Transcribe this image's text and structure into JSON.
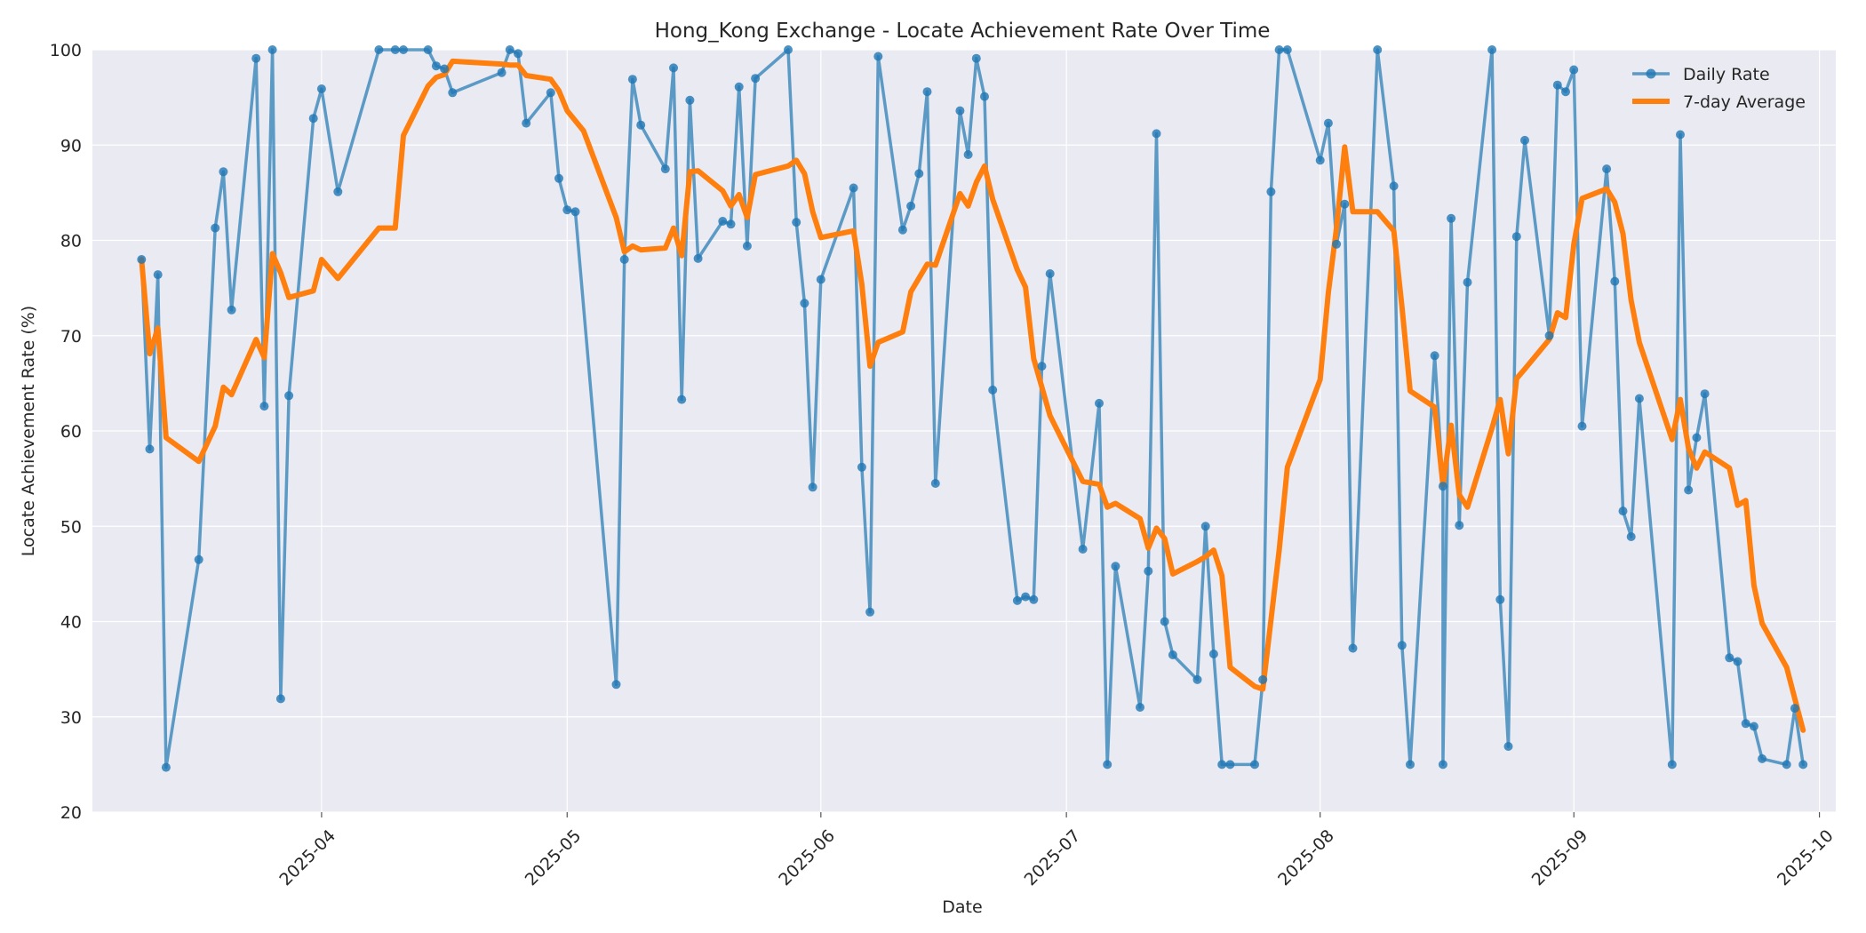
{
  "chart_data": {
    "type": "line",
    "title": "Hong_Kong Exchange - Locate Achievement Rate Over Time",
    "xlabel": "Date",
    "ylabel": "Locate Achievement Rate (%)",
    "xlim": [
      "2025-03-04",
      "2025-10-03"
    ],
    "ylim": [
      20,
      100
    ],
    "yticks": [
      20,
      30,
      40,
      50,
      60,
      70,
      80,
      90,
      100
    ],
    "xticks": [
      "2025-04-01",
      "2025-05-01",
      "2025-06-01",
      "2025-07-01",
      "2025-08-01",
      "2025-09-01",
      "2025-10-01"
    ],
    "xtick_labels": [
      "2025-04",
      "2025-05",
      "2025-06",
      "2025-07",
      "2025-08",
      "2025-09",
      "2025-10"
    ],
    "grid": true,
    "legend_position": "top-right",
    "series": [
      {
        "name": "Daily Rate",
        "color": "#1f77b4",
        "marker": "circle",
        "points": [
          [
            "2025-03-10",
            78.0
          ],
          [
            "2025-03-11",
            58.1
          ],
          [
            "2025-03-12",
            76.4
          ],
          [
            "2025-03-13",
            24.7
          ],
          [
            "2025-03-17",
            46.5
          ],
          [
            "2025-03-19",
            81.3
          ],
          [
            "2025-03-20",
            87.2
          ],
          [
            "2025-03-21",
            72.7
          ],
          [
            "2025-03-24",
            99.1
          ],
          [
            "2025-03-25",
            62.6
          ],
          [
            "2025-03-26",
            100.0
          ],
          [
            "2025-03-27",
            31.9
          ],
          [
            "2025-03-28",
            63.7
          ],
          [
            "2025-03-31",
            92.8
          ],
          [
            "2025-04-01",
            95.9
          ],
          [
            "2025-04-03",
            85.1
          ],
          [
            "2025-04-08",
            100.0
          ],
          [
            "2025-04-10",
            100.0
          ],
          [
            "2025-04-11",
            100.0
          ],
          [
            "2025-04-14",
            100.0
          ],
          [
            "2025-04-15",
            98.3
          ],
          [
            "2025-04-16",
            98.0
          ],
          [
            "2025-04-17",
            95.5
          ],
          [
            "2025-04-23",
            97.6
          ],
          [
            "2025-04-24",
            100.0
          ],
          [
            "2025-04-25",
            99.6
          ],
          [
            "2025-04-26",
            92.3
          ],
          [
            "2025-04-29",
            95.5
          ],
          [
            "2025-04-30",
            86.5
          ],
          [
            "2025-05-01",
            83.2
          ],
          [
            "2025-05-02",
            83.0
          ],
          [
            "2025-05-07",
            33.4
          ],
          [
            "2025-05-08",
            78.0
          ],
          [
            "2025-05-09",
            96.9
          ],
          [
            "2025-05-10",
            92.1
          ],
          [
            "2025-05-13",
            87.5
          ],
          [
            "2025-05-14",
            98.1
          ],
          [
            "2025-05-15",
            63.3
          ],
          [
            "2025-05-16",
            94.7
          ],
          [
            "2025-05-17",
            78.1
          ],
          [
            "2025-05-20",
            82.0
          ],
          [
            "2025-05-21",
            81.7
          ],
          [
            "2025-05-22",
            96.1
          ],
          [
            "2025-05-23",
            79.4
          ],
          [
            "2025-05-24",
            97.0
          ],
          [
            "2025-05-28",
            100.0
          ],
          [
            "2025-05-29",
            81.9
          ],
          [
            "2025-05-30",
            73.4
          ],
          [
            "2025-05-31",
            54.1
          ],
          [
            "2025-06-01",
            75.9
          ],
          [
            "2025-06-05",
            85.5
          ],
          [
            "2025-06-06",
            56.2
          ],
          [
            "2025-06-07",
            41.0
          ],
          [
            "2025-06-08",
            99.3
          ],
          [
            "2025-06-11",
            81.1
          ],
          [
            "2025-06-12",
            83.6
          ],
          [
            "2025-06-13",
            87.0
          ],
          [
            "2025-06-14",
            95.6
          ],
          [
            "2025-06-15",
            54.5
          ],
          [
            "2025-06-18",
            93.6
          ],
          [
            "2025-06-19",
            89.0
          ],
          [
            "2025-06-20",
            99.1
          ],
          [
            "2025-06-21",
            95.1
          ],
          [
            "2025-06-22",
            64.3
          ],
          [
            "2025-06-25",
            42.2
          ],
          [
            "2025-06-26",
            42.6
          ],
          [
            "2025-06-27",
            42.3
          ],
          [
            "2025-06-28",
            66.8
          ],
          [
            "2025-06-29",
            76.5
          ],
          [
            "2025-07-03",
            47.6
          ],
          [
            "2025-07-05",
            62.9
          ],
          [
            "2025-07-06",
            25.0
          ],
          [
            "2025-07-07",
            45.8
          ],
          [
            "2025-07-10",
            31.0
          ],
          [
            "2025-07-11",
            45.3
          ],
          [
            "2025-07-12",
            91.2
          ],
          [
            "2025-07-13",
            40.0
          ],
          [
            "2025-07-14",
            36.5
          ],
          [
            "2025-07-17",
            33.9
          ],
          [
            "2025-07-18",
            50.0
          ],
          [
            "2025-07-19",
            36.6
          ],
          [
            "2025-07-20",
            25.0
          ],
          [
            "2025-07-21",
            25.0
          ],
          [
            "2025-07-24",
            25.0
          ],
          [
            "2025-07-25",
            33.9
          ],
          [
            "2025-07-26",
            85.1
          ],
          [
            "2025-07-27",
            100.0
          ],
          [
            "2025-07-28",
            100.0
          ],
          [
            "2025-08-01",
            88.4
          ],
          [
            "2025-08-02",
            92.3
          ],
          [
            "2025-08-03",
            79.6
          ],
          [
            "2025-08-04",
            83.8
          ],
          [
            "2025-08-05",
            37.2
          ],
          [
            "2025-08-08",
            100.0
          ],
          [
            "2025-08-10",
            85.7
          ],
          [
            "2025-08-11",
            37.5
          ],
          [
            "2025-08-12",
            25.0
          ],
          [
            "2025-08-15",
            67.9
          ],
          [
            "2025-08-16",
            54.2
          ],
          [
            "2025-08-16",
            25.0
          ],
          [
            "2025-08-17",
            82.3
          ],
          [
            "2025-08-18",
            50.1
          ],
          [
            "2025-08-19",
            75.6
          ],
          [
            "2025-08-22",
            100.0
          ],
          [
            "2025-08-23",
            42.3
          ],
          [
            "2025-08-24",
            26.9
          ],
          [
            "2025-08-25",
            80.4
          ],
          [
            "2025-08-26",
            90.5
          ],
          [
            "2025-08-29",
            70.0
          ],
          [
            "2025-08-30",
            96.3
          ],
          [
            "2025-08-31",
            95.6
          ],
          [
            "2025-09-01",
            97.9
          ],
          [
            "2025-09-02",
            60.5
          ],
          [
            "2025-09-05",
            87.5
          ],
          [
            "2025-09-06",
            75.7
          ],
          [
            "2025-09-07",
            51.6
          ],
          [
            "2025-09-08",
            48.9
          ],
          [
            "2025-09-09",
            63.4
          ],
          [
            "2025-09-13",
            25.0
          ],
          [
            "2025-09-14",
            91.1
          ],
          [
            "2025-09-15",
            53.8
          ],
          [
            "2025-09-16",
            59.3
          ],
          [
            "2025-09-17",
            63.9
          ],
          [
            "2025-09-20",
            36.2
          ],
          [
            "2025-09-21",
            35.8
          ],
          [
            "2025-09-22",
            29.3
          ],
          [
            "2025-09-23",
            29.0
          ],
          [
            "2025-09-24",
            25.6
          ],
          [
            "2025-09-27",
            25.0
          ],
          [
            "2025-09-28",
            30.9
          ],
          [
            "2025-09-29",
            25.0
          ]
        ]
      },
      {
        "name": "7-day Average",
        "color": "#ff7f0e",
        "marker": "none",
        "points": [
          [
            "2025-03-10",
            78.0
          ],
          [
            "2025-03-11",
            68.1
          ],
          [
            "2025-03-12",
            70.8
          ],
          [
            "2025-03-13",
            59.3
          ],
          [
            "2025-03-17",
            56.8
          ],
          [
            "2025-03-19",
            60.5
          ],
          [
            "2025-03-20",
            64.6
          ],
          [
            "2025-03-21",
            63.8
          ],
          [
            "2025-03-24",
            69.6
          ],
          [
            "2025-03-25",
            67.7
          ],
          [
            "2025-03-26",
            78.6
          ],
          [
            "2025-03-27",
            76.6
          ],
          [
            "2025-03-28",
            74.0
          ],
          [
            "2025-03-31",
            74.7
          ],
          [
            "2025-04-01",
            78.0
          ],
          [
            "2025-04-03",
            76.0
          ],
          [
            "2025-04-08",
            81.3
          ],
          [
            "2025-04-10",
            81.3
          ],
          [
            "2025-04-11",
            91.0
          ],
          [
            "2025-04-14",
            96.2
          ],
          [
            "2025-04-15",
            97.1
          ],
          [
            "2025-04-16",
            97.4
          ],
          [
            "2025-04-17",
            98.8
          ],
          [
            "2025-04-23",
            98.5
          ],
          [
            "2025-04-24",
            98.4
          ],
          [
            "2025-04-25",
            98.4
          ],
          [
            "2025-04-26",
            97.3
          ],
          [
            "2025-04-29",
            96.9
          ],
          [
            "2025-04-30",
            95.7
          ],
          [
            "2025-05-01",
            93.6
          ],
          [
            "2025-05-03",
            91.5
          ],
          [
            "2025-05-07",
            82.4
          ],
          [
            "2025-05-08",
            78.8
          ],
          [
            "2025-05-09",
            79.4
          ],
          [
            "2025-05-10",
            79.0
          ],
          [
            "2025-05-13",
            79.2
          ],
          [
            "2025-05-14",
            81.3
          ],
          [
            "2025-05-15",
            78.4
          ],
          [
            "2025-05-16",
            87.2
          ],
          [
            "2025-05-17",
            87.3
          ],
          [
            "2025-05-20",
            85.2
          ],
          [
            "2025-05-21",
            83.6
          ],
          [
            "2025-05-22",
            84.8
          ],
          [
            "2025-05-23",
            82.4
          ],
          [
            "2025-05-24",
            86.9
          ],
          [
            "2025-05-28",
            87.8
          ],
          [
            "2025-05-29",
            88.4
          ],
          [
            "2025-05-30",
            87.0
          ],
          [
            "2025-05-31",
            83.0
          ],
          [
            "2025-06-01",
            80.3
          ],
          [
            "2025-06-05",
            81.0
          ],
          [
            "2025-06-06",
            75.4
          ],
          [
            "2025-06-07",
            66.8
          ],
          [
            "2025-06-08",
            69.3
          ],
          [
            "2025-06-11",
            70.4
          ],
          [
            "2025-06-12",
            74.6
          ],
          [
            "2025-06-14",
            77.5
          ],
          [
            "2025-06-15",
            77.4
          ],
          [
            "2025-06-18",
            84.9
          ],
          [
            "2025-06-19",
            83.6
          ],
          [
            "2025-06-20",
            86.1
          ],
          [
            "2025-06-21",
            87.8
          ],
          [
            "2025-06-22",
            84.3
          ],
          [
            "2025-06-25",
            76.9
          ],
          [
            "2025-06-26",
            75.1
          ],
          [
            "2025-06-27",
            67.6
          ],
          [
            "2025-06-29",
            61.6
          ],
          [
            "2025-07-03",
            54.7
          ],
          [
            "2025-07-05",
            54.4
          ],
          [
            "2025-07-06",
            52.0
          ],
          [
            "2025-07-07",
            52.4
          ],
          [
            "2025-07-10",
            50.8
          ],
          [
            "2025-07-11",
            47.7
          ],
          [
            "2025-07-12",
            49.8
          ],
          [
            "2025-07-13",
            48.7
          ],
          [
            "2025-07-14",
            45.0
          ],
          [
            "2025-07-17",
            46.3
          ],
          [
            "2025-07-18",
            46.8
          ],
          [
            "2025-07-19",
            47.5
          ],
          [
            "2025-07-20",
            44.8
          ],
          [
            "2025-07-21",
            35.2
          ],
          [
            "2025-07-24",
            33.2
          ],
          [
            "2025-07-25",
            32.9
          ],
          [
            "2025-07-27",
            47.5
          ],
          [
            "2025-07-28",
            56.2
          ],
          [
            "2025-08-01",
            65.4
          ],
          [
            "2025-08-02",
            74.5
          ],
          [
            "2025-08-03",
            81.3
          ],
          [
            "2025-08-04",
            89.8
          ],
          [
            "2025-08-05",
            83.0
          ],
          [
            "2025-08-07",
            83.0
          ],
          [
            "2025-08-08",
            83.0
          ],
          [
            "2025-08-10",
            81.0
          ],
          [
            "2025-08-11",
            73.0
          ],
          [
            "2025-08-12",
            64.2
          ],
          [
            "2025-08-15",
            62.5
          ],
          [
            "2025-08-16",
            54.3
          ],
          [
            "2025-08-17",
            60.6
          ],
          [
            "2025-08-18",
            53.3
          ],
          [
            "2025-08-19",
            52.0
          ],
          [
            "2025-08-22",
            60.3
          ],
          [
            "2025-08-23",
            63.3
          ],
          [
            "2025-08-24",
            57.6
          ],
          [
            "2025-08-25",
            65.5
          ],
          [
            "2025-08-26",
            66.5
          ],
          [
            "2025-08-29",
            69.6
          ],
          [
            "2025-08-30",
            72.4
          ],
          [
            "2025-08-31",
            71.9
          ],
          [
            "2025-09-01",
            79.6
          ],
          [
            "2025-09-02",
            84.4
          ],
          [
            "2025-09-05",
            85.4
          ],
          [
            "2025-09-06",
            84.0
          ],
          [
            "2025-09-07",
            80.7
          ],
          [
            "2025-09-08",
            73.7
          ],
          [
            "2025-09-09",
            69.3
          ],
          [
            "2025-09-13",
            59.1
          ],
          [
            "2025-09-14",
            63.3
          ],
          [
            "2025-09-15",
            58.2
          ],
          [
            "2025-09-16",
            56.1
          ],
          [
            "2025-09-17",
            57.8
          ],
          [
            "2025-09-20",
            56.1
          ],
          [
            "2025-09-21",
            52.2
          ],
          [
            "2025-09-22",
            52.7
          ],
          [
            "2025-09-23",
            43.8
          ],
          [
            "2025-09-24",
            39.8
          ],
          [
            "2025-09-27",
            35.2
          ],
          [
            "2025-09-28",
            31.9
          ],
          [
            "2025-09-29",
            28.6
          ]
        ]
      }
    ]
  }
}
